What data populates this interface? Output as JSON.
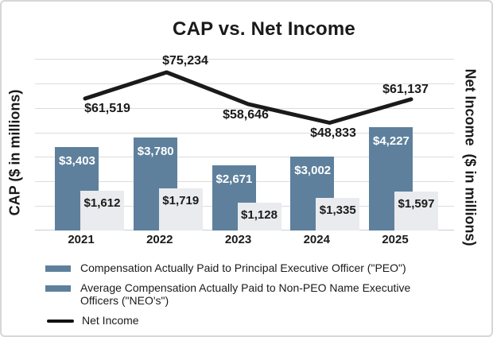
{
  "chart": {
    "title": "CAP vs. Net Income",
    "left_axis_title": "CAP ($ in millions)",
    "right_axis_title": "Net Income  ($ in millions)"
  },
  "chart_data": {
    "type": "combo-bar-line",
    "title": "CAP vs. Net Income",
    "categories": [
      "2021",
      "2022",
      "2023",
      "2024",
      "2025"
    ],
    "series": [
      {
        "name": "Compensation Actually Paid to Principal Executive Officer (\"PEO\")",
        "type": "bar",
        "axis": "left",
        "color": "#5e809c",
        "label_color": "#ffffff",
        "values": [
          3403,
          3780,
          2671,
          3002,
          4227
        ],
        "data_labels": [
          "$3,403",
          "$3,780",
          "$2,671",
          "$3,002",
          "$4,227"
        ]
      },
      {
        "name": "Average Compensation Actually Paid to Non-PEO Name Executive Officers (\"NEO's\")",
        "type": "bar",
        "axis": "left",
        "color": "#e9ebee",
        "label_color": "#1a1a1a",
        "values": [
          1612,
          1719,
          1128,
          1335,
          1597
        ],
        "data_labels": [
          "$1,612",
          "$1,719",
          "$1,128",
          "$1,335",
          "$1,597"
        ]
      },
      {
        "name": "Net Income",
        "type": "line",
        "axis": "right",
        "color": "#1a1a1a",
        "values": [
          61519,
          75234,
          58646,
          48833,
          61137
        ],
        "data_labels": [
          "$61,519",
          "$75,234",
          "$58,646",
          "$48,833",
          "$61,137"
        ]
      }
    ],
    "xlabel": "",
    "ylabel_left": "CAP ($ in millions)",
    "ylabel_right": "Net Income ($ in millions)",
    "left_axis": {
      "min": 0,
      "max": 7000,
      "gridline_count": 8,
      "grid": true
    },
    "value_prefix": "$",
    "legend_position": "bottom-left",
    "grid_color": "#dcdcdc"
  },
  "legend": {
    "items": [
      {
        "label": "Compensation Actually Paid to Principal Executive Officer (\"PEO\")",
        "swatch": "bar",
        "color": "#5e809c"
      },
      {
        "label": "Average Compensation Actually Paid to Non-PEO Name Executive Officers (\"NEO's\")",
        "swatch": "bar",
        "color": "#5e809c"
      },
      {
        "label": "Net Income",
        "swatch": "line",
        "color": "#111111"
      }
    ]
  }
}
